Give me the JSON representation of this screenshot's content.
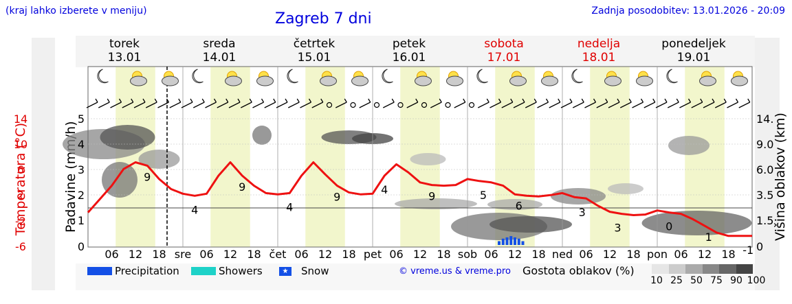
{
  "header": {
    "hint": "(kraj lahko izberete v meniju)",
    "title": "Zagreb 7 dni",
    "updated": "Zadnja posodobitev: 13.01.2026 - 20:09"
  },
  "days": [
    {
      "name": "torek",
      "date": "13.01",
      "weekend": false
    },
    {
      "name": "sreda",
      "date": "14.01",
      "weekend": false
    },
    {
      "name": "četrtek",
      "date": "15.01",
      "weekend": false
    },
    {
      "name": "petek",
      "date": "16.01",
      "weekend": false
    },
    {
      "name": "sobota",
      "date": "17.01",
      "weekend": true
    },
    {
      "name": "nedelja",
      "date": "18.01",
      "weekend": true
    },
    {
      "name": "ponedeljek",
      "date": "19.01",
      "weekend": false
    }
  ],
  "x_ticks": [
    "06",
    "12",
    "18",
    "sre",
    "06",
    "12",
    "18",
    "čet",
    "06",
    "12",
    "18",
    "pet",
    "06",
    "12",
    "18",
    "sob",
    "06",
    "12",
    "18",
    "ned",
    "06",
    "12",
    "18",
    "pon",
    "06",
    "12",
    "18"
  ],
  "axes": {
    "temp_label": "Temperatura (°C)",
    "precip_label": "Padavine (mm/h)",
    "cloud_label": "Višina oblakov (km)",
    "temp_ticks": [
      "14",
      "10",
      "6",
      "2",
      "-2",
      "-6"
    ],
    "precip_ticks": [
      "5",
      "4",
      "3",
      "2",
      "1",
      "0"
    ],
    "cloud_ticks": [
      "14.",
      "9.0",
      "6.0",
      "3.5",
      "1.5",
      "0"
    ]
  },
  "legend": {
    "precipitation": "Precipitation",
    "showers": "Showers",
    "snow": "Snow",
    "credit": "© vreme.us & vreme.pro",
    "cloud_density_label": "Gostota oblakov (%)",
    "density_ticks": [
      "10",
      "25",
      "50",
      "75",
      "90",
      "100"
    ],
    "density_colors": [
      "#e6e6e6",
      "#cccccc",
      "#aaaaaa",
      "#888888",
      "#666666",
      "#444444"
    ],
    "colors": {
      "precipitation": "#1450e6",
      "showers": "#1ed2c8",
      "snow": "#1450e6"
    }
  },
  "chart_data": {
    "type": "line",
    "xlabel": "",
    "ylabel": "Temperatura (°C)",
    "ylim": [
      -6,
      14
    ],
    "x_unit": "hours from 13.01 00:00",
    "temperature": {
      "name": "",
      "color": "#ee1111",
      "x": [
        0,
        3,
        6,
        9,
        12,
        15,
        18,
        21,
        24,
        27,
        30,
        33,
        36,
        39,
        42,
        45,
        48,
        51,
        54,
        57,
        60,
        63,
        66,
        69,
        72,
        75,
        78,
        81,
        84,
        87,
        90,
        93,
        96,
        99,
        102,
        105,
        108,
        111,
        114,
        117,
        120,
        123,
        126,
        129,
        132,
        135,
        138,
        141,
        144,
        147,
        150,
        153,
        156,
        159,
        162,
        165,
        168
      ],
      "values": [
        0.5,
        2.5,
        4.5,
        7,
        8,
        7.5,
        5.5,
        4,
        3.3,
        3,
        3.3,
        6,
        8,
        6,
        4.5,
        3.4,
        3.2,
        3.4,
        6,
        8,
        6.2,
        4.5,
        3.5,
        3.2,
        3.3,
        6,
        7.7,
        6.5,
        5,
        4.6,
        4.5,
        4.6,
        5.5,
        5.2,
        5,
        4.5,
        3.2,
        3,
        2.9,
        3.1,
        3.4,
        2.8,
        2.6,
        1.5,
        0.6,
        0.3,
        0.1,
        0.2,
        0.8,
        0.5,
        0.3,
        -0.5,
        -1.5,
        -2.5,
        -3,
        -3,
        -3
      ]
    },
    "data_labels": [
      {
        "x": 15,
        "text": "9"
      },
      {
        "x": 27,
        "text": "4"
      },
      {
        "x": 39,
        "text": "9"
      },
      {
        "x": 51,
        "text": "4"
      },
      {
        "x": 63,
        "text": "9"
      },
      {
        "x": 75,
        "text": "4"
      },
      {
        "x": 87,
        "text": "9"
      },
      {
        "x": 100,
        "text": "5"
      },
      {
        "x": 109,
        "text": "6"
      },
      {
        "x": 125,
        "text": "3"
      },
      {
        "x": 134,
        "text": "3"
      },
      {
        "x": 147,
        "text": "0"
      },
      {
        "x": 157,
        "text": "1"
      },
      {
        "x": 167,
        "text": "-1"
      }
    ],
    "precipitation": {
      "name": "Precipitation",
      "x": [
        104,
        105,
        106,
        107,
        108,
        109,
        110
      ],
      "values": [
        0.15,
        0.25,
        0.3,
        0.35,
        0.3,
        0.25,
        0.15
      ]
    },
    "now_hour": 20
  }
}
